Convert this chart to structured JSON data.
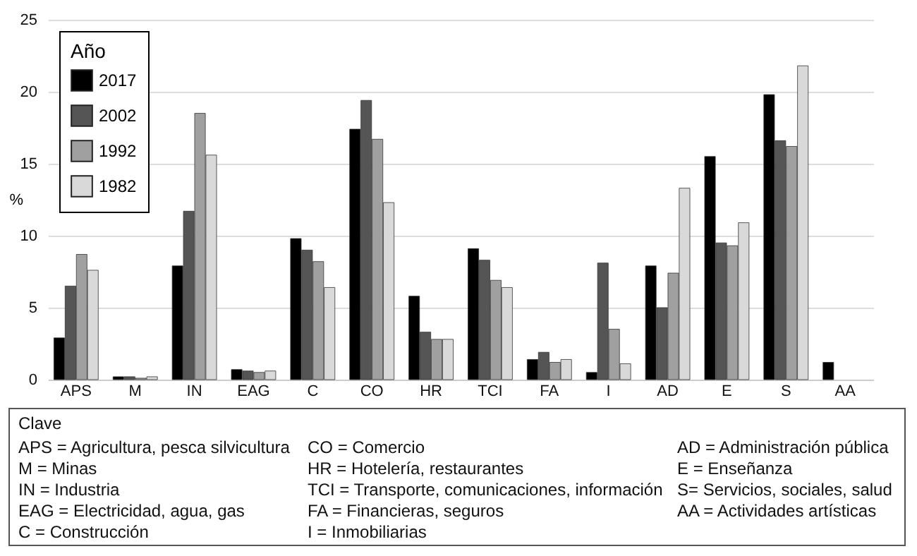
{
  "chart_data": {
    "type": "bar",
    "ylabel": "%",
    "legend_title": "Año",
    "legend": "top left",
    "grid": "y",
    "categories": [
      "APS",
      "M",
      "IN",
      "EAG",
      "C",
      "CO",
      "HR",
      "TCI",
      "FA",
      "I",
      "AD",
      "E",
      "S",
      "AA"
    ],
    "series": [
      {
        "name": "2017",
        "color": "#000000",
        "values": [
          2.9,
          0.2,
          7.9,
          0.7,
          9.8,
          17.4,
          5.8,
          9.1,
          1.4,
          0.5,
          7.9,
          15.5,
          19.8,
          1.2
        ]
      },
      {
        "name": "2002",
        "color": "#555555",
        "values": [
          6.5,
          0.2,
          11.7,
          0.6,
          9.0,
          19.4,
          3.3,
          8.3,
          1.9,
          8.1,
          5.0,
          9.5,
          16.6,
          null
        ]
      },
      {
        "name": "1992",
        "color": "#a0a0a0",
        "values": [
          8.7,
          0.1,
          18.5,
          0.5,
          8.2,
          16.7,
          2.8,
          6.9,
          1.2,
          3.5,
          7.4,
          9.3,
          16.2,
          null
        ]
      },
      {
        "name": "1982",
        "color": "#d9d9d9",
        "values": [
          7.6,
          0.2,
          15.6,
          0.6,
          6.4,
          12.3,
          2.8,
          6.4,
          1.4,
          1.1,
          13.3,
          10.9,
          21.8,
          null
        ]
      }
    ],
    "ylim": [
      0,
      25
    ],
    "yticks": [
      0,
      5,
      10,
      15,
      20,
      25
    ],
    "annotations": [
      "Clave",
      "APS = Agricultura, pesca silvicultura",
      "M = Minas",
      "IN = Industria",
      "EAG = Electricidad, agua, gas",
      "C = Construcción",
      "CO = Comercio",
      "HR = Hotelería, restaurantes",
      "TCI = Transporte, comunicaciones, información",
      "FA = Financieras, seguros",
      "I = Inmobiliarias",
      "AD = Administración pública",
      "E = Enseñanza",
      "S= Servicios, sociales, salud",
      "AA = Actividades artísticas"
    ]
  }
}
